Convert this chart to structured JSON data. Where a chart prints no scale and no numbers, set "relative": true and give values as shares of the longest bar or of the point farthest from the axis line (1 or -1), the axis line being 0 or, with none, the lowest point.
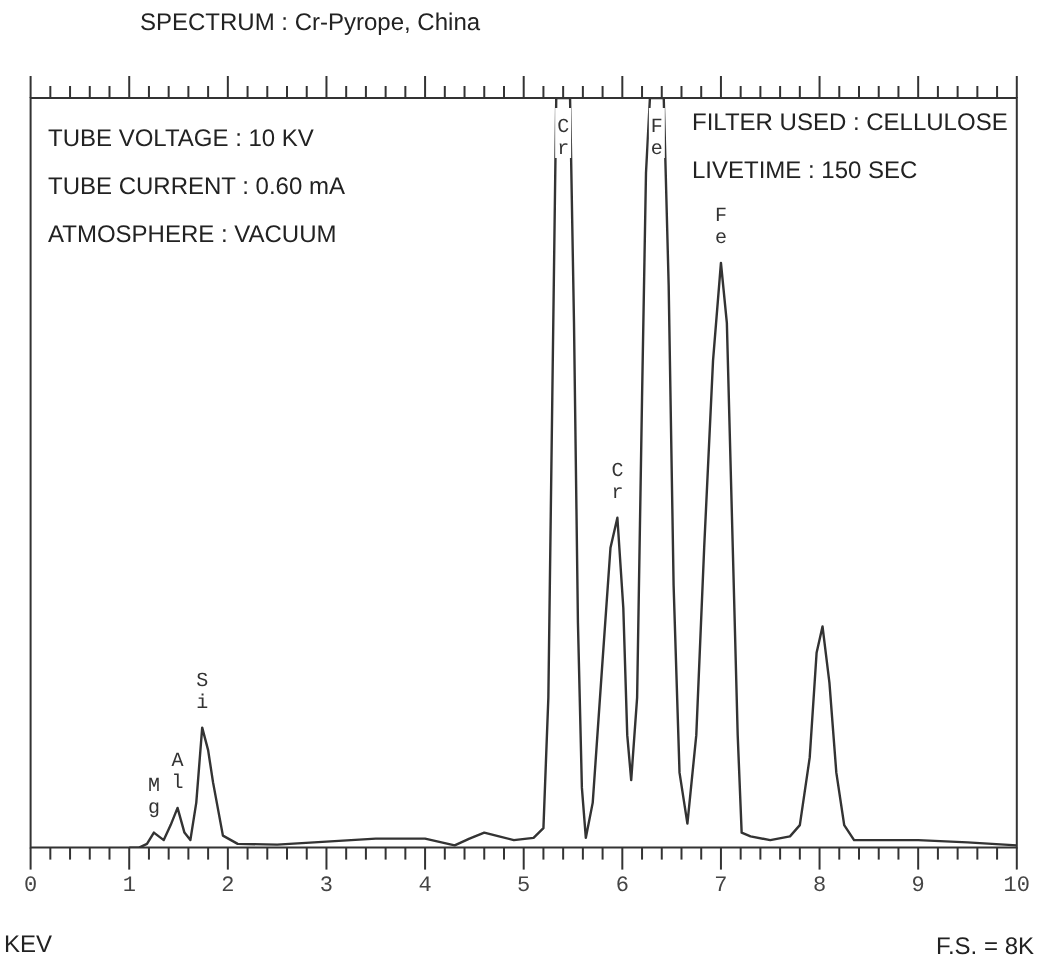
{
  "chart_data": {
    "type": "line",
    "title": "SPECTRUM : Cr-Pyrope, China",
    "xlabel": "KEV",
    "relative": true,
    "legend": false,
    "xlim": [
      0,
      10
    ],
    "xticks": [
      0,
      {
        "value": 0.2,
        "label": null
      },
      {
        "value": 0.4,
        "label": null
      },
      {
        "value": 0.6,
        "label": null
      },
      {
        "value": 0.8,
        "label": null
      },
      1,
      {
        "value": 1.2,
        "label": null
      },
      {
        "value": 1.4,
        "label": null
      },
      {
        "value": 1.6,
        "label": null
      },
      {
        "value": 1.8,
        "label": null
      },
      2,
      {
        "value": 2.2,
        "label": null
      },
      {
        "value": 2.4,
        "label": null
      },
      {
        "value": 2.6,
        "label": null
      },
      {
        "value": 2.8,
        "label": null
      },
      3,
      {
        "value": 3.2,
        "label": null
      },
      {
        "value": 3.4,
        "label": null
      },
      {
        "value": 3.6,
        "label": null
      },
      {
        "value": 3.8,
        "label": null
      },
      4,
      {
        "value": 4.2,
        "label": null
      },
      {
        "value": 4.4,
        "label": null
      },
      {
        "value": 4.6,
        "label": null
      },
      {
        "value": 4.8,
        "label": null
      },
      5,
      {
        "value": 5.2,
        "label": null
      },
      {
        "value": 5.4,
        "label": null
      },
      {
        "value": 5.6,
        "label": null
      },
      {
        "value": 5.8,
        "label": null
      },
      6,
      {
        "value": 6.2,
        "label": null
      },
      {
        "value": 6.4,
        "label": null
      },
      {
        "value": 6.6,
        "label": null
      },
      {
        "value": 6.8,
        "label": null
      },
      7,
      {
        "value": 7.2,
        "label": null
      },
      {
        "value": 7.4,
        "label": null
      },
      {
        "value": 7.6,
        "label": null
      },
      {
        "value": 7.8,
        "label": null
      },
      8,
      {
        "value": 8.2,
        "label": null
      },
      {
        "value": 8.4,
        "label": null
      },
      {
        "value": 8.6,
        "label": null
      },
      {
        "value": 8.8,
        "label": null
      },
      9,
      {
        "value": 9.2,
        "label": null
      },
      {
        "value": 9.4,
        "label": null
      },
      {
        "value": 9.6,
        "label": null
      },
      {
        "value": 9.8,
        "label": null
      },
      10
    ],
    "series": [
      {
        "color": "#333333",
        "x": [
          1.0,
          1.1,
          1.18,
          1.25,
          1.35,
          1.42,
          1.49,
          1.56,
          1.62,
          1.68,
          1.74,
          1.8,
          1.85,
          1.95,
          2.1,
          2.5,
          3.0,
          3.5,
          4.0,
          4.3,
          4.45,
          4.6,
          4.75,
          4.9,
          5.1,
          5.2,
          5.25,
          5.29,
          5.33,
          5.47,
          5.51,
          5.55,
          5.59,
          5.63,
          5.7,
          5.8,
          5.88,
          5.95,
          6.01,
          6.05,
          6.09,
          6.15,
          6.2,
          6.24,
          6.28,
          6.42,
          6.47,
          6.52,
          6.58,
          6.66,
          6.75,
          6.83,
          6.92,
          7.0,
          7.06,
          7.12,
          7.17,
          7.21,
          7.3,
          7.5,
          7.7,
          7.8,
          7.9,
          7.97,
          8.03,
          8.1,
          8.17,
          8.25,
          8.35,
          8.6,
          9.0,
          9.5,
          10.0
        ],
        "values": [
          0,
          0,
          0.005,
          0.02,
          0.01,
          0.03,
          0.053,
          0.02,
          0.01,
          0.06,
          0.16,
          0.13,
          0.087,
          0.016,
          0.005,
          0.004,
          0.008,
          0.012,
          0.012,
          0.003,
          0.012,
          0.02,
          0.015,
          0.01,
          0.013,
          0.026,
          0.2,
          0.6,
          1,
          1,
          0.7,
          0.3,
          0.08,
          0.013,
          0.06,
          0.25,
          0.4,
          0.44,
          0.32,
          0.15,
          0.09,
          0.2,
          0.6,
          0.9,
          1,
          1,
          0.75,
          0.35,
          0.1,
          0.032,
          0.15,
          0.4,
          0.65,
          0.78,
          0.7,
          0.4,
          0.15,
          0.02,
          0.015,
          0.01,
          0.015,
          0.03,
          0.12,
          0.26,
          0.295,
          0.22,
          0.1,
          0.03,
          0.01,
          0.01,
          0.01,
          0.007,
          0.003
        ]
      }
    ],
    "annotations": [
      "TUBE VOLTAGE : 10 KV",
      "TUBE CURRENT : 0.60 mA",
      "ATMOSPHERE : VACUUM",
      "FILTER USED : CELLULOSE",
      "LIVETIME : 150 SEC",
      "F.S. = 8K",
      {
        "text": "Mg",
        "x": 1.25,
        "y": 0.02
      },
      {
        "text": "Al",
        "x": 1.49,
        "y": 0.053
      },
      {
        "text": "Si",
        "x": 1.74,
        "y": 0.16
      },
      {
        "text": "Cr",
        "x": 5.4,
        "y": 1
      },
      {
        "text": "Cr",
        "x": 5.95,
        "y": 0.44
      },
      {
        "text": "Fe",
        "x": 6.35,
        "y": 1
      },
      {
        "text": "Fe",
        "x": 7.0,
        "y": 0.78
      }
    ]
  }
}
